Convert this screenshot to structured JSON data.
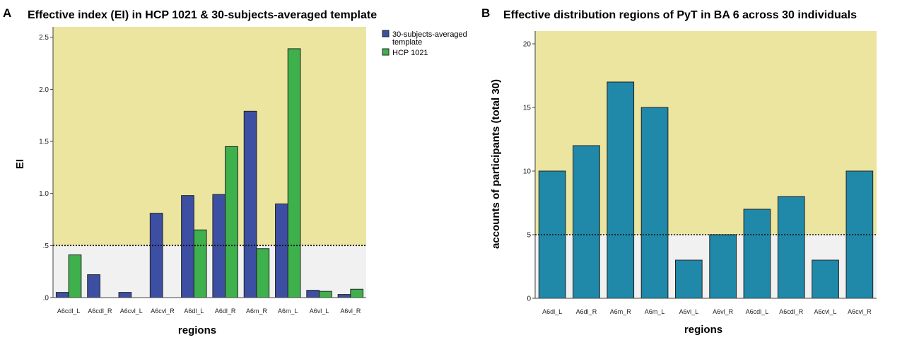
{
  "colors": {
    "upper_zone": "#ebe5a0",
    "lower_zone": "#f1f1f1",
    "series_template": "#3d4fa3",
    "series_hcp": "#3fb14c",
    "bar_b": "#2088a8",
    "bar_stroke": "#222222"
  },
  "chart_data": [
    {
      "panel_label": "A",
      "type": "bar",
      "title": "Effective index (EI) in HCP 1021 & 30-subjects-averaged template",
      "xlabel": "regions",
      "ylabel": "EI",
      "ylim": [
        0,
        2.6
      ],
      "yticks": [
        0,
        0.5,
        1.0,
        1.5,
        2.0,
        2.5
      ],
      "ytick_labels": [
        ".0",
        ".5",
        "1.0",
        "1.5",
        "2.0",
        "2.5"
      ],
      "threshold": 0.5,
      "categories": [
        "A6cdl_L",
        "A6cdl_R",
        "A6cvl_L",
        "A6cvl_R",
        "A6dl_L",
        "A6dl_R",
        "A6m_R",
        "A6m_L",
        "A6vl_L",
        "A6vl_R"
      ],
      "series": [
        {
          "name": "30-subjects-averaged template",
          "legend_lines": [
            "30-subjects-averaged",
            "template"
          ],
          "values": [
            0.05,
            0.22,
            0.05,
            0.81,
            0.98,
            0.99,
            1.79,
            0.9,
            0.07,
            0.03
          ]
        },
        {
          "name": "HCP 1021",
          "legend_lines": [
            "HCP 1021"
          ],
          "values": [
            0.41,
            0.0,
            0.0,
            0.0,
            0.65,
            1.45,
            0.47,
            2.39,
            0.06,
            0.08
          ]
        }
      ],
      "legend_position": "top-right"
    },
    {
      "panel_label": "B",
      "type": "bar",
      "title": "Effective distribution regions of PyT in BA 6  across 30 individuals",
      "xlabel": "regions",
      "ylabel": "accounts of participants (total 30)",
      "ylim": [
        0,
        21
      ],
      "yticks": [
        0,
        5,
        10,
        15,
        20
      ],
      "ytick_labels": [
        "0",
        "5",
        "10",
        "15",
        "20"
      ],
      "threshold": 5,
      "categories": [
        "A6dl_L",
        "A6dl_R",
        "A6m_R",
        "A6m_L",
        "A6vl_L",
        "A6vl_R",
        "A6cdl_L",
        "A6cdl_R",
        "A6cvl_L",
        "A6cvl_R"
      ],
      "values": [
        10,
        12,
        17,
        15,
        3,
        5,
        7,
        8,
        3,
        10
      ]
    }
  ]
}
